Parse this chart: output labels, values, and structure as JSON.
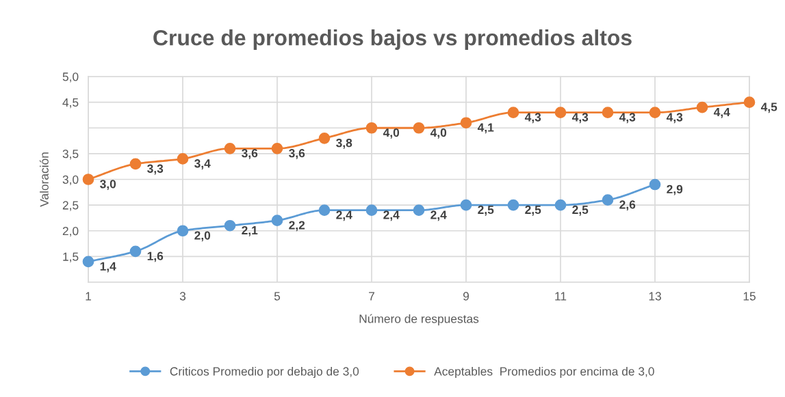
{
  "chart_data": {
    "type": "line",
    "title": "Cruce de promedios bajos vs promedios altos",
    "xlabel": "Número de respuestas",
    "ylabel": "Valoración",
    "xlim": [
      1,
      15
    ],
    "xticks": [
      1,
      3,
      5,
      7,
      9,
      11,
      13,
      15
    ],
    "ylim": [
      1.0,
      5.0
    ],
    "yticks": [
      {
        "value": 1.0,
        "label": null
      },
      {
        "value": 1.5,
        "label": "1,5"
      },
      {
        "value": 2.0,
        "label": "2,0"
      },
      {
        "value": 2.5,
        "label": "2,5"
      },
      {
        "value": 3.0,
        "label": "3,0"
      },
      {
        "value": 3.5,
        "label": "3,5"
      },
      {
        "value": 4.0,
        "label": null
      },
      {
        "value": 4.5,
        "label": "4,5"
      },
      {
        "value": 5.0,
        "label": "5,0"
      }
    ],
    "grid": true,
    "legend": "bottom",
    "marker": "circle",
    "line_style": "solid",
    "series": [
      {
        "name": "Criticos Promedio por debajo de 3,0",
        "color": "#5b9bd5",
        "x": [
          1,
          2,
          3,
          4,
          5,
          6,
          7,
          8,
          9,
          10,
          11,
          12,
          13
        ],
        "values": [
          1.4,
          1.6,
          2.0,
          2.1,
          2.2,
          2.4,
          2.4,
          2.4,
          2.5,
          2.5,
          2.5,
          2.6,
          2.9
        ],
        "value_labels": [
          "1,4",
          "1,6",
          "2,0",
          "2,1",
          "2,2",
          "2,4",
          "2,4",
          "2,4",
          "2,5",
          "2,5",
          "2,5",
          "2,6",
          "2,9"
        ]
      },
      {
        "name": "Aceptables  Promedios por encima de 3,0",
        "color": "#ed7d31",
        "x": [
          1,
          2,
          3,
          4,
          5,
          6,
          7,
          8,
          9,
          10,
          11,
          12,
          13,
          14,
          15
        ],
        "values": [
          3.0,
          3.3,
          3.4,
          3.6,
          3.6,
          3.8,
          4.0,
          4.0,
          4.1,
          4.3,
          4.3,
          4.3,
          4.3,
          4.4,
          4.5
        ],
        "value_labels": [
          "3,0",
          "3,3",
          "3,4",
          "3,6",
          "3,6",
          "3,8",
          "4,0",
          "4,0",
          "4,1",
          "4,3",
          "4,3",
          "4,3",
          "4,3",
          "4,4",
          "4,5"
        ]
      }
    ]
  }
}
